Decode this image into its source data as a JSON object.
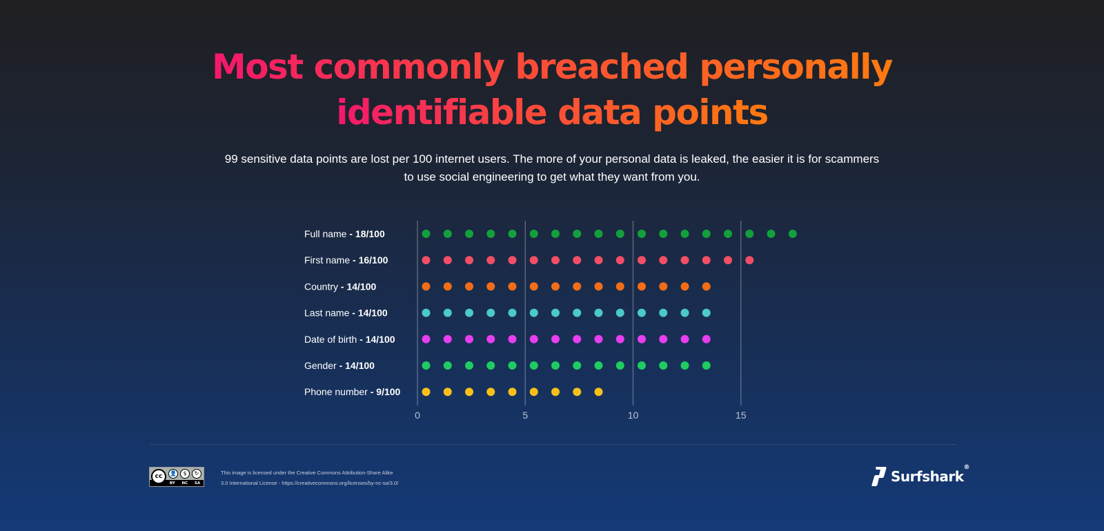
{
  "title_line1": "Most commonly breached personally",
  "title_line2": "identifiable data points",
  "subtitle_line1": "99 sensitive data points are lost per 100 internet users. The more of your personal data is leaked, the easier it is for scammers",
  "subtitle_line2": "to use social engineering to get what they want from you.",
  "chart_data": {
    "type": "dot",
    "categories": [
      "Full name",
      "First name",
      "Country",
      "Last name",
      "Date of birth",
      "Gender",
      "Phone number"
    ],
    "value_labels": [
      "18/100",
      "16/100",
      "14/100",
      "14/100",
      "14/100",
      "14/100",
      "9/100"
    ],
    "values": [
      18,
      16,
      14,
      14,
      14,
      14,
      9
    ],
    "colors": [
      "#13a03c",
      "#f24e66",
      "#f26d17",
      "#4cc9c9",
      "#e83ef0",
      "#1fcb62",
      "#f7c11a"
    ],
    "x_ticks": [
      "0",
      "5",
      "10",
      "15"
    ],
    "xlim": [
      0,
      18
    ],
    "grid": true
  },
  "footer": {
    "license_line1": "This image is licensed under the Creative Commons Attribution-Share Alike",
    "license_line2": "3.0 International License - https://creativecommons.org/licenses/by-nc-sa/3.0/",
    "cc_badge_text": "cc",
    "cc_codes": [
      "BY",
      "NC",
      "SA"
    ],
    "brand": "Surfshark",
    "brand_mark": "®"
  }
}
